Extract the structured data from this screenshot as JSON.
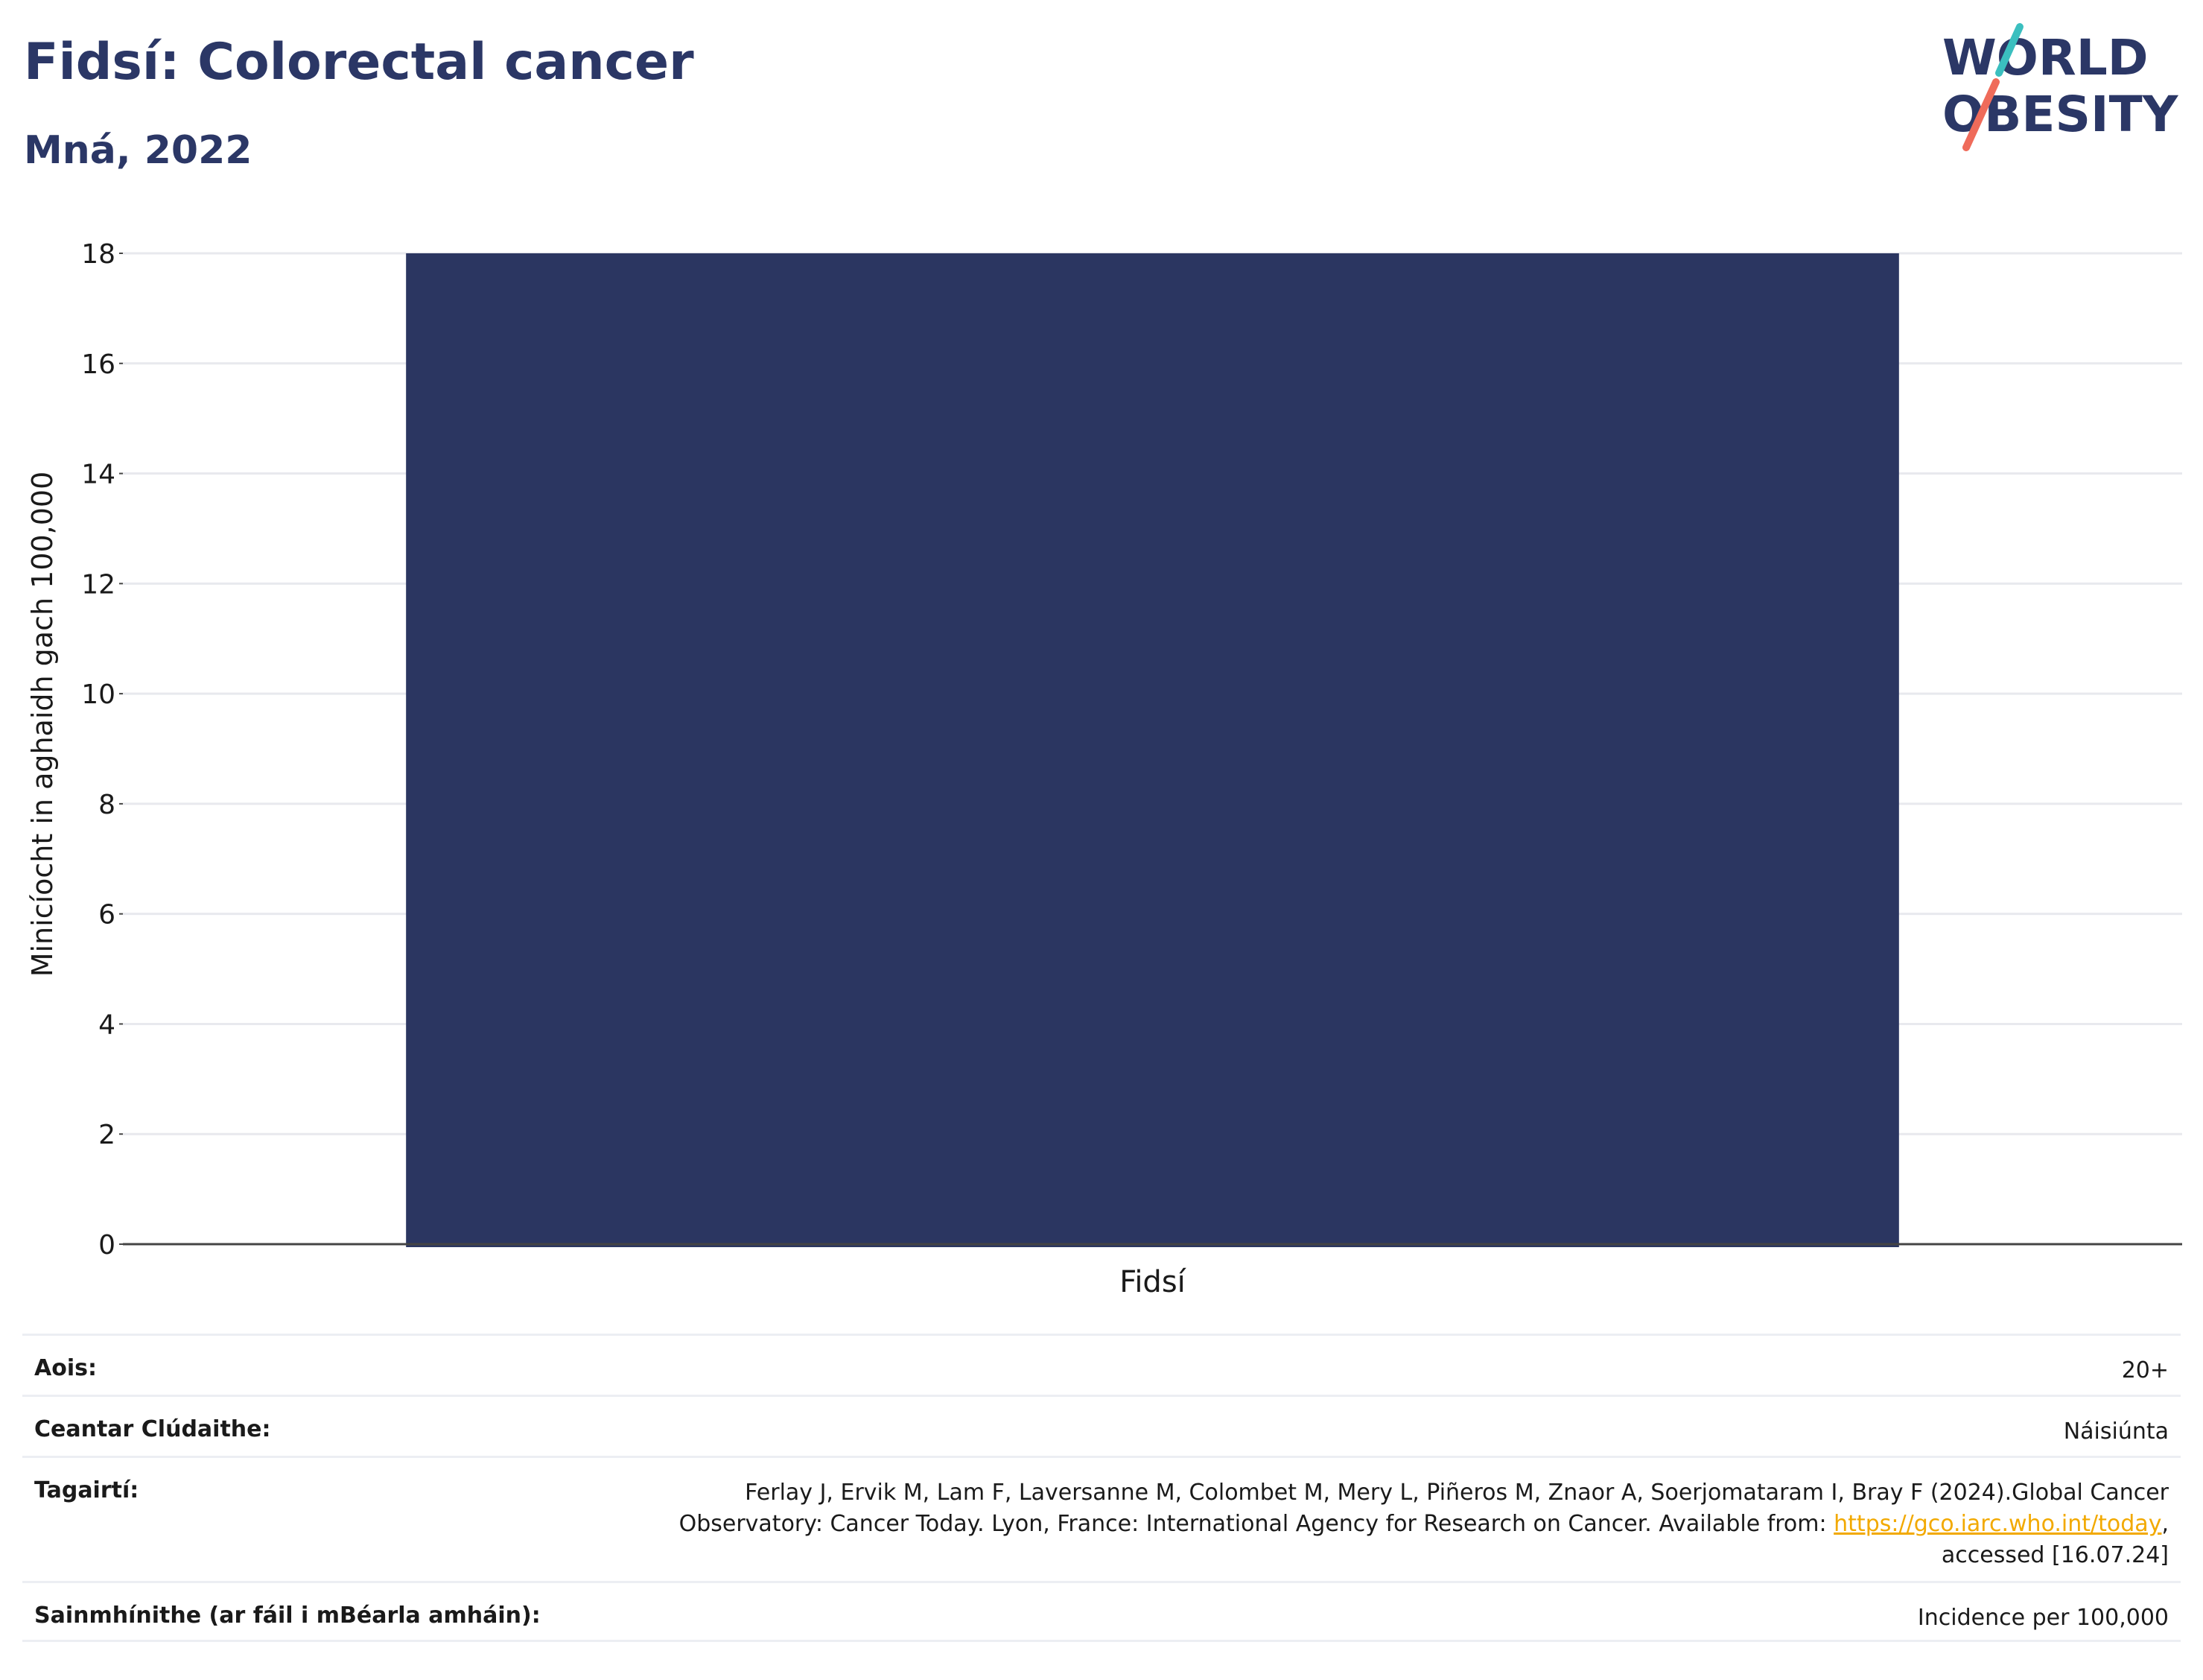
{
  "header": {
    "title": "Fidsí: Colorectal cancer",
    "subtitle": "Mná, 2022"
  },
  "logo": {
    "line1": "WORLD",
    "line2": "OBESITY",
    "accent_colors": [
      "#3bbfbf",
      "#ef6b5a"
    ]
  },
  "colors": {
    "bar": "#2b3661",
    "text_dark": "#2b3766",
    "grid": "#e8e9ee",
    "link": "#f2a900"
  },
  "chart_data": {
    "type": "bar",
    "categories": [
      "Fidsí"
    ],
    "values": [
      18
    ],
    "title": "Fidsí: Colorectal cancer",
    "subtitle": "Mná, 2022",
    "xlabel": "",
    "ylabel": "Minicíocht in aghaidh gach 100,000",
    "ylim": [
      0,
      18
    ],
    "yticks": [
      0,
      2,
      4,
      6,
      8,
      10,
      12,
      14,
      16,
      18
    ],
    "grid": true,
    "legend": "none"
  },
  "info": {
    "rows": [
      {
        "label": "Aois:",
        "value": "20+"
      },
      {
        "label": "Ceantar Clúdaithe:",
        "value": "Náisiúnta"
      },
      {
        "label": "Tagairtí:",
        "value_line1": "Ferlay J, Ervik M, Lam F, Laversanne M, Colombet M, Mery L, Piñeros M, Znaor A, Soerjomataram I, Bray F (2024).Global Cancer",
        "value_line2_pre": "Observatory: Cancer Today. Lyon, France: International Agency for Research on Cancer. Available from: ",
        "value_link": "https://gco.iarc.who.int/today",
        "value_line2_post": ",",
        "value_line3": "accessed [16.07.24]"
      },
      {
        "label": "Sainmhínithe (ar fáil i mBéarla amháin):",
        "value": "Incidence per 100,000"
      }
    ]
  }
}
